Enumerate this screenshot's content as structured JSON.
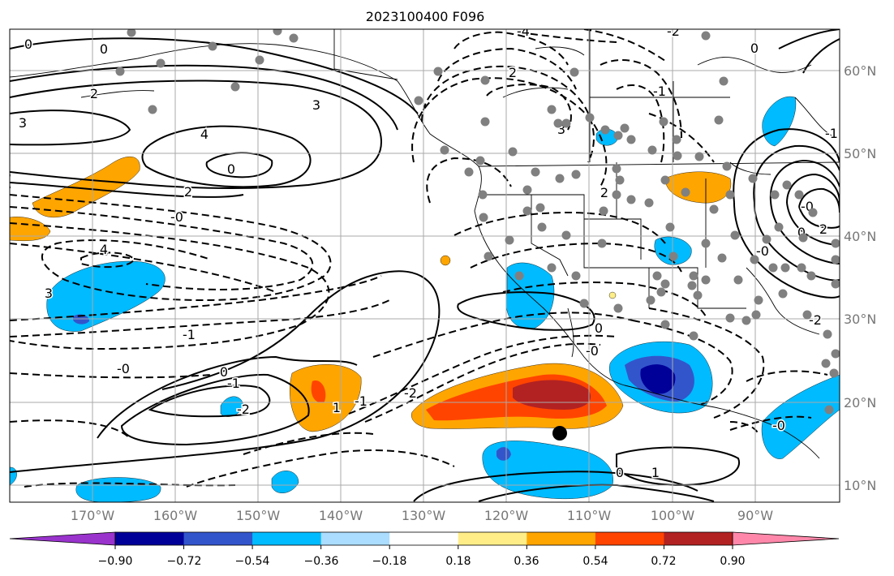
{
  "title": "2023100400 F096",
  "axes": {
    "lon_labels": [
      "170°W",
      "160°W",
      "150°W",
      "140°W",
      "130°W",
      "120°W",
      "110°W",
      "100°W",
      "90°W"
    ],
    "lat_labels": [
      "60°N",
      "50°N",
      "40°N",
      "30°N",
      "20°N",
      "10°N"
    ]
  },
  "contour_labels": [
    "0",
    "0",
    "2",
    "3",
    "3",
    "4",
    "0",
    "2",
    "4",
    "3",
    "-1",
    "-0",
    "0",
    "-2",
    "-1",
    "-2",
    "2",
    "3",
    "2",
    "-4",
    "-0",
    "-2",
    "-0",
    "0",
    "0",
    "-2",
    "-1",
    "0",
    "-1",
    "-0",
    "0",
    "1",
    "2",
    "-0",
    "-1",
    "-0",
    "1"
  ],
  "colorbar": {
    "tick_labels": [
      "−0.90",
      "−0.72",
      "−0.54",
      "−0.36",
      "−0.18",
      "0.18",
      "0.36",
      "0.54",
      "0.72",
      "0.90"
    ],
    "colors": [
      "#9933cc",
      "#000099",
      "#3355cc",
      "#00bbff",
      "#aaddff",
      "#ffffff",
      "#ffee88",
      "#ffa500",
      "#ff4400",
      "#b22222",
      "#ff88aa"
    ]
  },
  "colors": {
    "gridline": "#aaaaaa",
    "station_dot": "#808080",
    "marker": "#000000",
    "axis_label": "#777777"
  }
}
